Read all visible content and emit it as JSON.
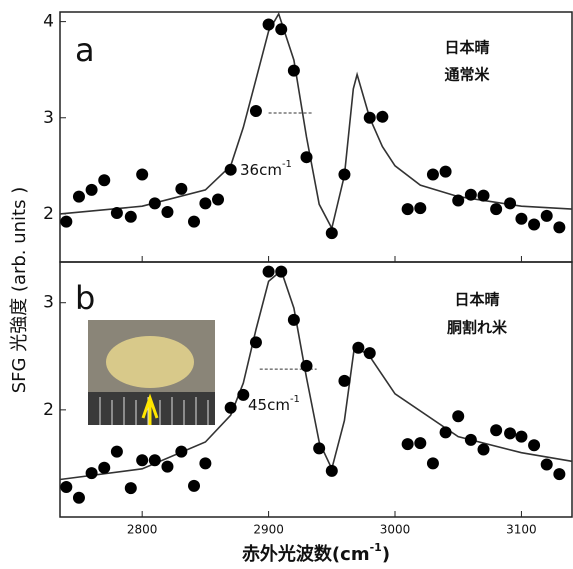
{
  "chart_data": [
    {
      "type": "scatter",
      "panel_label": "a",
      "label_lines": [
        "日本晴",
        "通常米"
      ],
      "annotation": {
        "text": "36cm",
        "sup": "-1"
      },
      "xlim": [
        2735,
        3140
      ],
      "ylim": [
        1.5,
        4.1
      ],
      "yticks": [
        2,
        3,
        4
      ],
      "xticks": [
        2800,
        2900,
        3000,
        3100
      ],
      "point_color": "#000",
      "line_color": "#333",
      "points": {
        "x": [
          2740,
          2750,
          2760,
          2770,
          2780,
          2791,
          2800,
          2810,
          2820,
          2831,
          2841,
          2850,
          2860,
          2870,
          2890,
          2900,
          2910,
          2920,
          2930,
          2950,
          2960,
          2980,
          2990,
          3010,
          3020,
          3030,
          3040,
          3050,
          3060,
          3070,
          3080,
          3091,
          3100,
          3110,
          3120,
          3130
        ],
        "values": [
          1.92,
          2.18,
          2.25,
          2.35,
          2.01,
          1.97,
          2.41,
          2.11,
          2.02,
          2.26,
          1.92,
          2.11,
          2.15,
          2.46,
          3.07,
          3.97,
          3.92,
          3.49,
          2.59,
          1.8,
          2.41,
          3.0,
          3.01,
          2.05,
          2.06,
          2.41,
          2.44,
          2.14,
          2.2,
          2.19,
          2.05,
          2.11,
          1.95,
          1.89,
          1.98,
          1.86
        ]
      },
      "fit": {
        "x": [
          2735,
          2800,
          2850,
          2870,
          2880,
          2890,
          2900,
          2908,
          2920,
          2930,
          2940,
          2950,
          2960,
          2967,
          2970,
          2980,
          2990,
          3000,
          3020,
          3050,
          3100,
          3140
        ],
        "values": [
          2.0,
          2.08,
          2.25,
          2.5,
          2.9,
          3.4,
          3.9,
          4.08,
          3.6,
          2.8,
          2.1,
          1.85,
          2.4,
          3.3,
          3.45,
          3.0,
          2.7,
          2.5,
          2.3,
          2.18,
          2.08,
          2.05
        ]
      }
    },
    {
      "type": "scatter",
      "panel_label": "b",
      "label_lines": [
        "日本晴",
        "胴割れ米"
      ],
      "annotation": {
        "text": "45cm",
        "sup": "-1"
      },
      "xlim": [
        2735,
        3140
      ],
      "ylim": [
        1.0,
        3.38
      ],
      "yticks": [
        2,
        3
      ],
      "xticks": [
        2800,
        2900,
        3000,
        3100
      ],
      "point_color": "#000",
      "line_color": "#333",
      "points": {
        "x": [
          2740,
          2750,
          2760,
          2770,
          2780,
          2791,
          2800,
          2810,
          2820,
          2831,
          2841,
          2850,
          2870,
          2880,
          2890,
          2900,
          2910,
          2920,
          2930,
          2940,
          2950,
          2960,
          2971,
          2980,
          3010,
          3020,
          3030,
          3040,
          3050,
          3060,
          3070,
          3080,
          3091,
          3100,
          3110,
          3120,
          3130
        ],
        "values": [
          1.28,
          1.18,
          1.41,
          1.46,
          1.61,
          1.27,
          1.53,
          1.53,
          1.47,
          1.61,
          1.29,
          1.5,
          2.02,
          2.14,
          2.63,
          3.29,
          3.29,
          2.84,
          2.41,
          1.64,
          1.43,
          2.27,
          2.58,
          2.53,
          1.68,
          1.69,
          1.5,
          1.79,
          1.94,
          1.72,
          1.63,
          1.81,
          1.78,
          1.75,
          1.67,
          1.49,
          1.4
        ]
      },
      "fit": {
        "x": [
          2735,
          2800,
          2850,
          2870,
          2880,
          2890,
          2900,
          2910,
          2920,
          2930,
          2940,
          2950,
          2960,
          2968,
          2980,
          3000,
          3050,
          3100,
          3140
        ],
        "values": [
          1.35,
          1.45,
          1.7,
          1.95,
          2.25,
          2.75,
          3.2,
          3.3,
          2.95,
          2.3,
          1.7,
          1.45,
          1.9,
          2.6,
          2.5,
          2.15,
          1.75,
          1.6,
          1.52
        ]
      }
    }
  ],
  "y_label": "SFG 光強度 (arb. units )",
  "x_label": {
    "text": "赤外光波数(cm",
    "sup": "-1",
    "close": ")"
  }
}
